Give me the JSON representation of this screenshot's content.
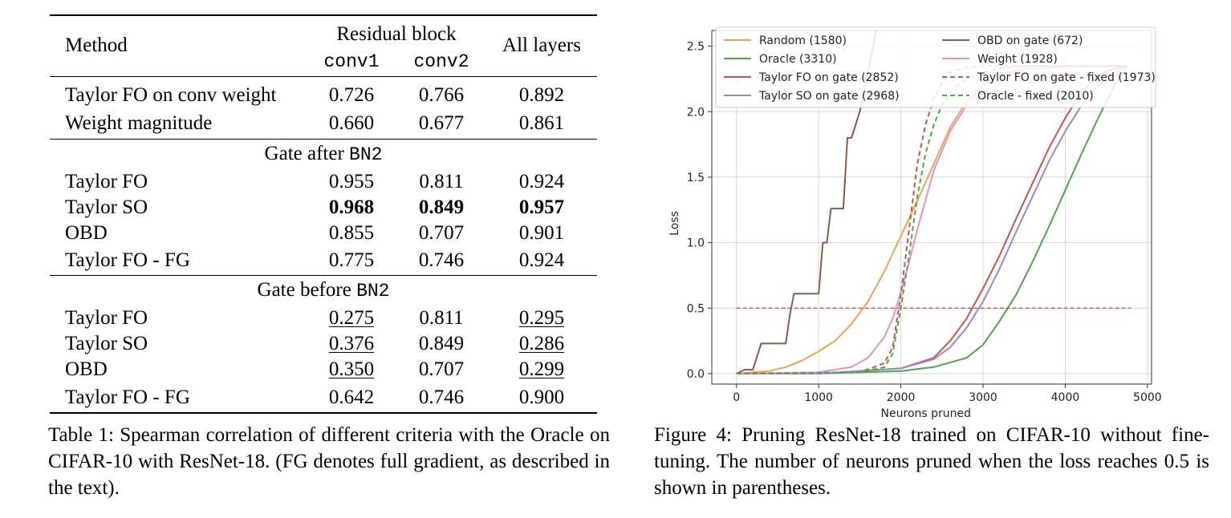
{
  "table": {
    "header": {
      "method": "Method",
      "residual_block": "Residual block",
      "conv1": "conv1",
      "conv2": "conv2",
      "all_layers": "All layers"
    },
    "rows_top": [
      {
        "method": "Taylor FO on conv weight",
        "conv1": "0.726",
        "conv2": "0.766",
        "all": "0.892"
      },
      {
        "method": "Weight magnitude",
        "conv1": "0.660",
        "conv2": "0.677",
        "all": "0.861"
      }
    ],
    "after": {
      "title_prefix": "Gate after ",
      "title_code": "BN2",
      "rows": [
        {
          "method": "Taylor FO",
          "conv1": "0.955",
          "conv2": "0.811",
          "all": "0.924"
        },
        {
          "method": "Taylor SO",
          "conv1": "0.968",
          "conv2": "0.849",
          "all": "0.957"
        },
        {
          "method": "OBD",
          "conv1": "0.855",
          "conv2": "0.707",
          "all": "0.901"
        },
        {
          "method": "Taylor FO - FG",
          "conv1": "0.775",
          "conv2": "0.746",
          "all": "0.924"
        }
      ]
    },
    "before": {
      "title_prefix": "Gate before ",
      "title_code": "BN2",
      "rows": [
        {
          "method": "Taylor FO",
          "conv1": "0.275",
          "conv2": "0.811",
          "all": "0.295"
        },
        {
          "method": "Taylor SO",
          "conv1": "0.376",
          "conv2": "0.849",
          "all": "0.286"
        },
        {
          "method": "OBD",
          "conv1": "0.350",
          "conv2": "0.707",
          "all": "0.299"
        },
        {
          "method": "Taylor FO - FG",
          "conv1": "0.642",
          "conv2": "0.746",
          "all": "0.900"
        }
      ]
    },
    "caption": "Table 1: Spearman correlation of different criteria with the Oracle on CIFAR-10 with ResNet-18. (FG denotes full gradient, as described in the text)."
  },
  "figure": {
    "caption": "Figure 4: Pruning ResNet-18 trained on CIFAR-10 without fine-tuning. The number of neurons pruned when the loss reaches 0.5 is shown in parentheses."
  },
  "chart_data": {
    "type": "line",
    "xlabel": "Neurons pruned",
    "ylabel": "Loss",
    "xlim": [
      -300,
      5050
    ],
    "ylim": [
      -0.08,
      2.62
    ],
    "xticks": [
      0,
      1000,
      2000,
      3000,
      4000,
      5000
    ],
    "yticks": [
      0.0,
      0.5,
      1.0,
      1.5,
      2.0,
      2.5
    ],
    "xtick_labels": [
      "0",
      "1000",
      "2000",
      "3000",
      "4000",
      "5000"
    ],
    "ytick_labels": [
      "0.0",
      "0.5",
      "1.0",
      "1.5",
      "2.0",
      "2.5"
    ],
    "grid": true,
    "legend_position": "top",
    "series": [
      {
        "name": "Random (1580)",
        "color": "#f5a04a",
        "dash": false,
        "x": [
          0,
          200,
          400,
          600,
          800,
          1000,
          1200,
          1400,
          1600,
          1800,
          2000,
          2200,
          2400,
          2600,
          2800,
          3000,
          3200,
          3500,
          4000,
          4500,
          4750
        ],
        "y": [
          0,
          0.01,
          0.02,
          0.05,
          0.1,
          0.17,
          0.25,
          0.38,
          0.55,
          0.78,
          1.05,
          1.32,
          1.6,
          1.88,
          2.08,
          2.2,
          2.28,
          2.32,
          2.34,
          2.345,
          2.35
        ]
      },
      {
        "name": "Oracle (3310)",
        "color": "#4aa84a",
        "dash": false,
        "x": [
          0,
          1000,
          2000,
          2400,
          2800,
          3000,
          3200,
          3400,
          3600,
          3800,
          4000,
          4200,
          4400,
          4600,
          4750
        ],
        "y": [
          0,
          0.0,
          0.02,
          0.05,
          0.12,
          0.22,
          0.4,
          0.6,
          0.85,
          1.12,
          1.4,
          1.68,
          1.95,
          2.2,
          2.35
        ]
      },
      {
        "name": "Taylor FO on gate (2852)",
        "color": "#d0504b",
        "dash": false,
        "x": [
          0,
          1000,
          2000,
          2400,
          2600,
          2800,
          3000,
          3200,
          3400,
          3600,
          3800,
          4000,
          4200,
          4400,
          4600,
          4750
        ],
        "y": [
          0,
          0.0,
          0.04,
          0.12,
          0.25,
          0.42,
          0.65,
          0.9,
          1.18,
          1.45,
          1.72,
          1.95,
          2.15,
          2.28,
          2.33,
          2.35
        ]
      },
      {
        "name": "Taylor SO on gate (2968)",
        "color": "#9b85cf",
        "dash": false,
        "x": [
          0,
          1000,
          2000,
          2400,
          2600,
          2800,
          3000,
          3200,
          3400,
          3600,
          3800,
          4000,
          4200,
          4400,
          4600,
          4750
        ],
        "y": [
          0,
          0.0,
          0.04,
          0.11,
          0.2,
          0.35,
          0.55,
          0.8,
          1.08,
          1.35,
          1.62,
          1.85,
          2.05,
          2.2,
          2.3,
          2.35
        ]
      },
      {
        "name": "OBD on gate (672)",
        "color": "#8c5a4c",
        "dash": false,
        "x": [
          0,
          100,
          200,
          300,
          400,
          500,
          600,
          650,
          700,
          800,
          900,
          1000,
          1050,
          1100,
          1150,
          1200,
          1300,
          1350,
          1400,
          1500,
          1600,
          1700,
          1800
        ],
        "y": [
          0,
          0.03,
          0.03,
          0.23,
          0.23,
          0.23,
          0.23,
          0.45,
          0.61,
          0.61,
          0.61,
          0.61,
          1.0,
          1.0,
          1.26,
          1.26,
          1.26,
          1.8,
          1.8,
          2.0,
          2.3,
          2.62,
          2.62
        ]
      },
      {
        "name": "Weight (1928)",
        "color": "#e48fd0",
        "dash": false,
        "x": [
          0,
          1000,
          1400,
          1600,
          1800,
          1900,
          2000,
          2100,
          2200,
          2400,
          2600,
          2800,
          3000,
          3200,
          3400,
          3600,
          4000,
          4500,
          4750
        ],
        "y": [
          0,
          0.01,
          0.05,
          0.12,
          0.28,
          0.42,
          0.62,
          0.85,
          1.1,
          1.55,
          1.85,
          2.05,
          2.2,
          2.28,
          2.32,
          2.34,
          2.345,
          2.35,
          2.35
        ]
      },
      {
        "name": "Taylor FO on gate - fixed (1973)",
        "color": "#d0504b",
        "dash": true,
        "x": [
          0,
          1500,
          1800,
          1900,
          2000,
          2100,
          2200,
          2300,
          2400,
          2500,
          2600,
          2800,
          3000,
          3200,
          3500,
          4000,
          4750
        ],
        "y": [
          0,
          0.01,
          0.08,
          0.2,
          0.6,
          1.1,
          1.6,
          1.9,
          2.1,
          2.22,
          2.3,
          2.34,
          2.35,
          2.35,
          2.35,
          2.35,
          2.35
        ]
      },
      {
        "name": "Oracle - fixed (2010)",
        "color": "#4aa84a",
        "dash": true,
        "x": [
          0,
          1500,
          1800,
          1900,
          2000,
          2100,
          2200,
          2300,
          2400,
          2500,
          2600,
          2800,
          3000,
          3200,
          3500,
          4000,
          4750
        ],
        "y": [
          0,
          0.01,
          0.05,
          0.15,
          0.5,
          0.9,
          1.35,
          1.68,
          1.9,
          2.05,
          2.15,
          2.25,
          2.3,
          2.33,
          2.35,
          2.35,
          2.35
        ]
      },
      {
        "name": "",
        "color": "#d0504b",
        "dash": true,
        "x": [
          0,
          4800
        ],
        "y": [
          0.5,
          0.5
        ]
      }
    ]
  }
}
